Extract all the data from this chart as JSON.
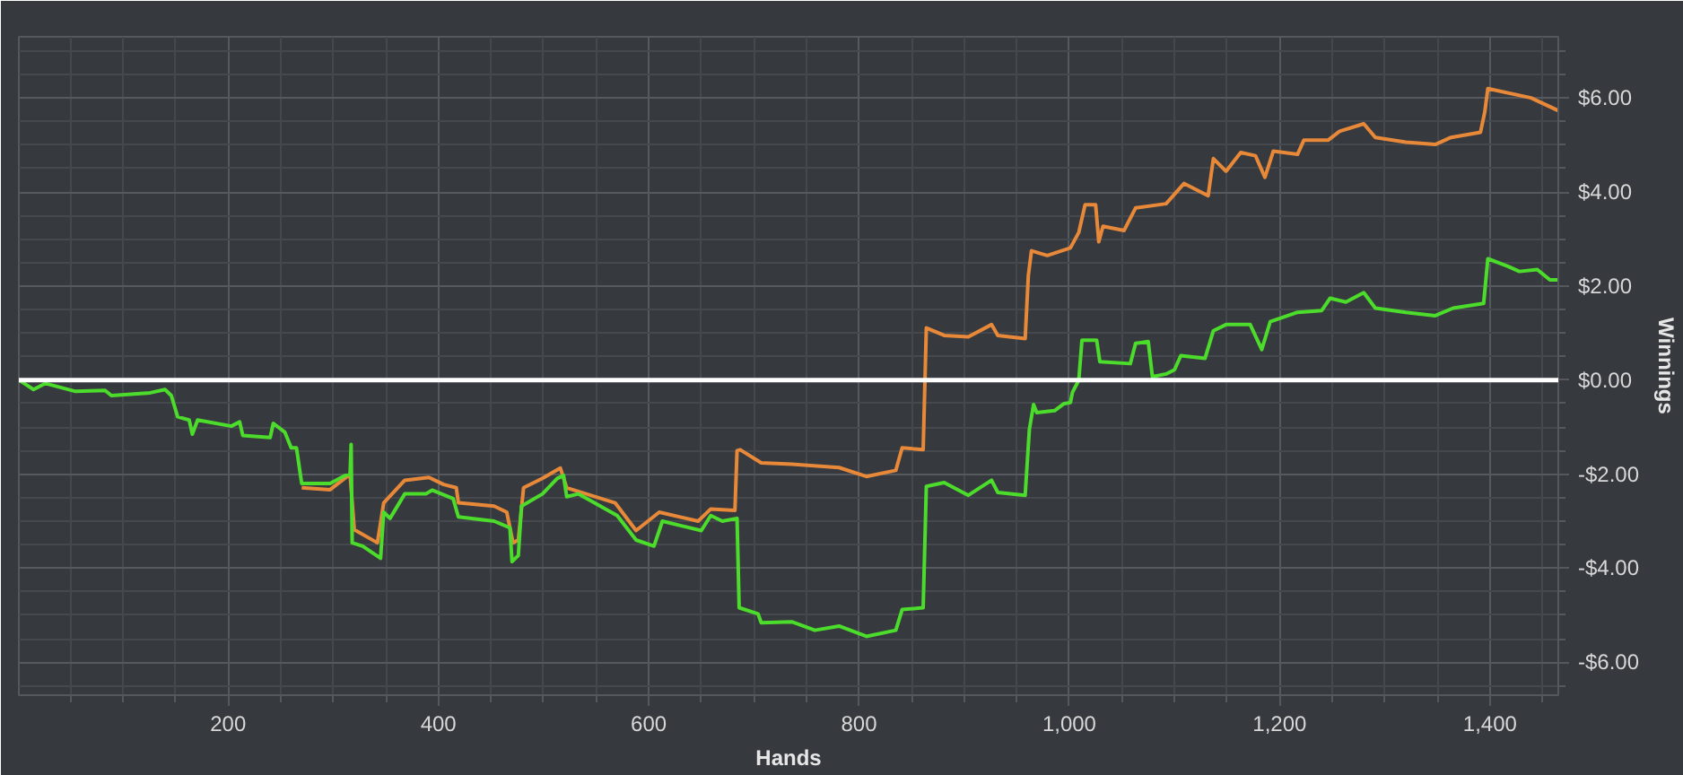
{
  "chart_data": {
    "type": "line",
    "xlabel": "Hands",
    "ylabel": "Winnings",
    "xlim": [
      1,
      1465
    ],
    "ylim": [
      -6.7,
      7.3
    ],
    "xticks": [
      200,
      400,
      600,
      800,
      {
        "value": 1000,
        "label": "1,000"
      },
      {
        "value": 1200,
        "label": "1,200"
      },
      {
        "value": 1400,
        "label": "1,400"
      }
    ],
    "yticks": [
      {
        "value": -6,
        "label": "-$6.00"
      },
      {
        "value": -4,
        "label": "-$4.00"
      },
      {
        "value": -2,
        "label": "-$2.00"
      },
      {
        "value": 0,
        "label": "$0.00"
      },
      {
        "value": 2,
        "label": "$2.00"
      },
      {
        "value": 4,
        "label": "$4.00"
      },
      {
        "value": 6,
        "label": "$6.00"
      }
    ],
    "grid": true,
    "ref_lines": [
      {
        "axis": "y",
        "value": 0,
        "color": "#ffffff"
      }
    ],
    "series": [
      {
        "color": "#e8893a",
        "x": [
          270,
          297,
          316,
          320,
          342,
          348,
          368,
          391,
          405,
          417,
          419,
          453,
          465,
          471,
          476,
          481,
          499,
          516,
          522,
          568,
          588,
          610,
          647,
          659,
          682,
          684,
          687,
          707,
          736,
          781,
          807,
          835,
          841,
          861,
          864,
          881,
          904,
          926,
          932,
          958,
          961,
          964,
          979,
          1001,
          1009,
          1015,
          1025,
          1028,
          1032,
          1052,
          1063,
          1092,
          1109,
          1132,
          1137,
          1149,
          1163,
          1177,
          1186,
          1194,
          1217,
          1223,
          1246,
          1257,
          1280,
          1291,
          1320,
          1348,
          1363,
          1391,
          1395,
          1398,
          1439,
          1465
        ],
        "values": [
          -2.29,
          -2.33,
          -2.0,
          -3.18,
          -3.46,
          -2.61,
          -2.13,
          -2.07,
          -2.22,
          -2.29,
          -2.61,
          -2.68,
          -2.81,
          -3.46,
          -3.4,
          -2.29,
          -2.09,
          -1.87,
          -2.29,
          -2.61,
          -3.2,
          -2.81,
          -3.0,
          -2.74,
          -2.77,
          -1.5,
          -1.48,
          -1.76,
          -1.79,
          -1.86,
          -2.05,
          -1.92,
          -1.44,
          -1.48,
          1.11,
          0.95,
          0.92,
          1.18,
          0.95,
          0.88,
          2.22,
          2.75,
          2.65,
          2.81,
          3.14,
          3.73,
          3.73,
          2.94,
          3.27,
          3.18,
          3.66,
          3.75,
          4.18,
          3.92,
          4.71,
          4.44,
          4.84,
          4.77,
          4.31,
          4.87,
          4.8,
          5.1,
          5.1,
          5.29,
          5.45,
          5.16,
          5.06,
          5.01,
          5.16,
          5.27,
          5.69,
          6.2,
          6.0,
          5.73
        ]
      },
      {
        "color": "#4cdc2c",
        "x": [
          1,
          6,
          15,
          26,
          55,
          83,
          89,
          126,
          140,
          146,
          152,
          163,
          166,
          171,
          203,
          211,
          214,
          240,
          243,
          254,
          260,
          265,
          270,
          297,
          311,
          316,
          317,
          318,
          328,
          345,
          348,
          354,
          368,
          388,
          394,
          414,
          419,
          453,
          468,
          470,
          476,
          479,
          499,
          513,
          519,
          522,
          533,
          570,
          588,
          605,
          613,
          650,
          659,
          670,
          684,
          686,
          704,
          707,
          736,
          758,
          781,
          807,
          835,
          841,
          861,
          864,
          881,
          904,
          926,
          932,
          958,
          962,
          966,
          969,
          986,
          995,
          1001,
          1003,
          1009,
          1012,
          1026,
          1029,
          1058,
          1063,
          1075,
          1079,
          1092,
          1100,
          1106,
          1129,
          1137,
          1149,
          1172,
          1183,
          1191,
          1217,
          1240,
          1248,
          1263,
          1280,
          1291,
          1320,
          1348,
          1365,
          1394,
          1398,
          1417,
          1428,
          1445,
          1457,
          1465
        ],
        "values": [
          0,
          -0.07,
          -0.2,
          -0.07,
          -0.24,
          -0.22,
          -0.33,
          -0.27,
          -0.2,
          -0.33,
          -0.78,
          -0.85,
          -1.15,
          -0.85,
          -0.98,
          -0.89,
          -1.18,
          -1.22,
          -0.92,
          -1.11,
          -1.44,
          -1.44,
          -2.2,
          -2.2,
          -2.03,
          -2.0,
          -1.37,
          -3.46,
          -3.53,
          -3.79,
          -2.81,
          -2.94,
          -2.42,
          -2.42,
          -2.34,
          -2.52,
          -2.91,
          -3.0,
          -3.14,
          -3.86,
          -3.73,
          -2.68,
          -2.42,
          -2.09,
          -2.03,
          -2.48,
          -2.42,
          -2.88,
          -3.4,
          -3.53,
          -3.0,
          -3.2,
          -2.88,
          -3.0,
          -2.94,
          -4.84,
          -4.97,
          -5.16,
          -5.14,
          -5.32,
          -5.23,
          -5.45,
          -5.32,
          -4.88,
          -4.84,
          -2.26,
          -2.18,
          -2.45,
          -2.13,
          -2.39,
          -2.45,
          -1.05,
          -0.52,
          -0.69,
          -0.65,
          -0.5,
          -0.48,
          -0.26,
          0,
          0.85,
          0.85,
          0.39,
          0.35,
          0.78,
          0.82,
          0.07,
          0.13,
          0.22,
          0.52,
          0.46,
          1.05,
          1.18,
          1.18,
          0.65,
          1.24,
          1.44,
          1.48,
          1.74,
          1.66,
          1.86,
          1.53,
          1.44,
          1.37,
          1.53,
          1.63,
          2.58,
          2.42,
          2.31,
          2.35,
          2.13,
          2.13
        ]
      }
    ]
  }
}
